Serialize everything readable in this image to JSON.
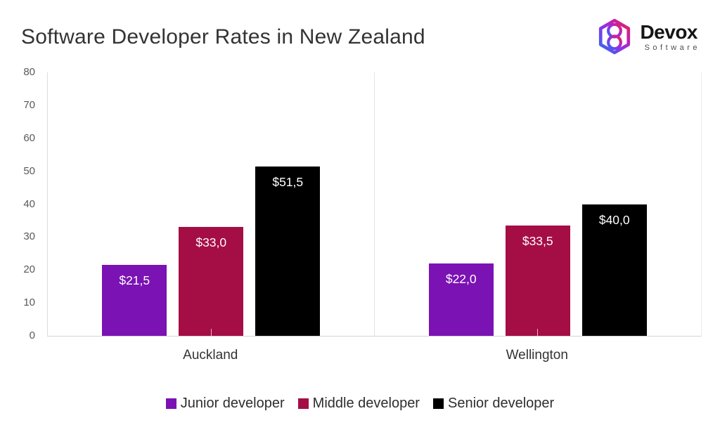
{
  "header": {
    "title": "Software Developer Rates in New Zealand",
    "logo": {
      "brand": "Devox",
      "subtitle": "Software"
    }
  },
  "chart_data": {
    "type": "bar",
    "title": "Software Developer Rates in New Zealand",
    "categories": [
      "Auckland",
      "Wellington"
    ],
    "series": [
      {
        "name": "Junior developer",
        "color": "#7a12b4",
        "values": [
          21.5,
          22.0
        ],
        "labels": [
          "$21,5",
          "$22,0"
        ]
      },
      {
        "name": "Middle developer",
        "color": "#a50d45",
        "values": [
          33.0,
          33.5
        ],
        "labels": [
          "$33,0",
          "$33,5"
        ]
      },
      {
        "name": "Senior developer",
        "color": "#000000",
        "values": [
          51.5,
          40.0
        ],
        "labels": [
          "$51,5",
          "$40,0"
        ]
      }
    ],
    "ylim": [
      0,
      80
    ],
    "yticks": [
      0,
      10,
      20,
      30,
      40,
      50,
      60,
      70,
      80
    ],
    "grid": false,
    "xlabel": "",
    "ylabel": "",
    "legend_position": "bottom",
    "colors": {
      "axis_line": "#dcdcdc",
      "tick_text": "#595959",
      "bar_label_text": "#ffffff"
    }
  }
}
